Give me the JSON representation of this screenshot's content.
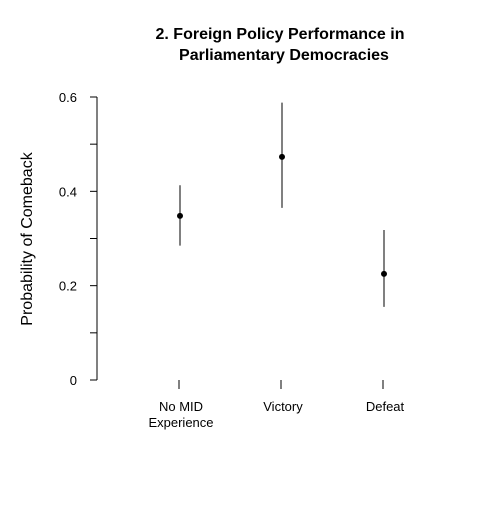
{
  "chart_data": {
    "type": "scatter",
    "title_lines": [
      "2. Foreign Policy Performance in",
      "Parliamentary Democracies"
    ],
    "xlabel": "",
    "ylabel": "Probability of Comeback",
    "ylim": [
      0,
      0.6
    ],
    "yticks": [
      0,
      0.1,
      0.2,
      0.3,
      0.4,
      0.5,
      0.6
    ],
    "ytick_labels": [
      "0",
      "",
      "0.2",
      "",
      "0.4",
      "",
      "0.6"
    ],
    "categories": [
      [
        "No MID",
        "Experience"
      ],
      [
        "Victory"
      ],
      [
        "Defeat"
      ]
    ],
    "points": [
      {
        "value": 0.348,
        "lower": 0.285,
        "upper": 0.413
      },
      {
        "value": 0.473,
        "lower": 0.365,
        "upper": 0.588
      },
      {
        "value": 0.225,
        "lower": 0.155,
        "upper": 0.318
      }
    ],
    "grid": false,
    "legend": "none",
    "colors": {
      "point": "#000000",
      "errorbar": "#000000",
      "axis": "#000000"
    }
  }
}
